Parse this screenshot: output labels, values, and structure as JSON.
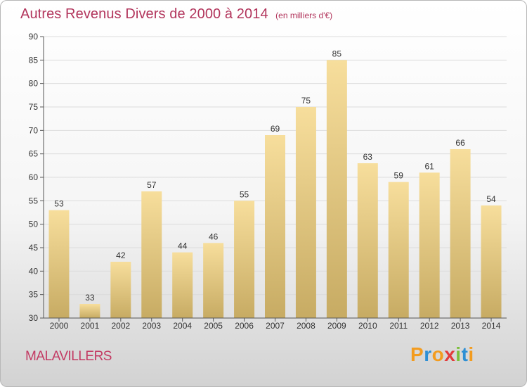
{
  "page": {
    "title": "Autres Revenus Divers de 2000 à 2014",
    "subtitle": "(en milliers d'€)",
    "place": "MALAVILLERS",
    "brand": {
      "letters": [
        "P",
        "r",
        "o",
        "x",
        "i",
        "t",
        "i"
      ],
      "colors": [
        "#f39c1f",
        "#2d8fd4",
        "#f39c1f",
        "#e23b3b",
        "#7abf3a",
        "#2d8fd4",
        "#f39c1f"
      ]
    }
  },
  "chart_data": {
    "type": "bar",
    "title": "Autres Revenus Divers de 2000 à 2014",
    "subtitle": "(en milliers d'€)",
    "categories": [
      "2000",
      "2001",
      "2002",
      "2003",
      "2004",
      "2005",
      "2006",
      "2007",
      "2008",
      "2009",
      "2010",
      "2011",
      "2012",
      "2013",
      "2014"
    ],
    "values": [
      53,
      33,
      42,
      57,
      44,
      46,
      55,
      69,
      75,
      85,
      63,
      59,
      61,
      66,
      54
    ],
    "ylim": [
      30,
      90
    ],
    "yticks": [
      30,
      35,
      40,
      45,
      50,
      55,
      60,
      65,
      70,
      75,
      80,
      85,
      90
    ],
    "grid": true,
    "colors": {
      "bar_top": "#f7de9c",
      "bar_bottom": "#c7ab63",
      "grid": "#dcdcdc",
      "axis": "#555555",
      "text": "#333333",
      "title": "#b2355c"
    }
  }
}
